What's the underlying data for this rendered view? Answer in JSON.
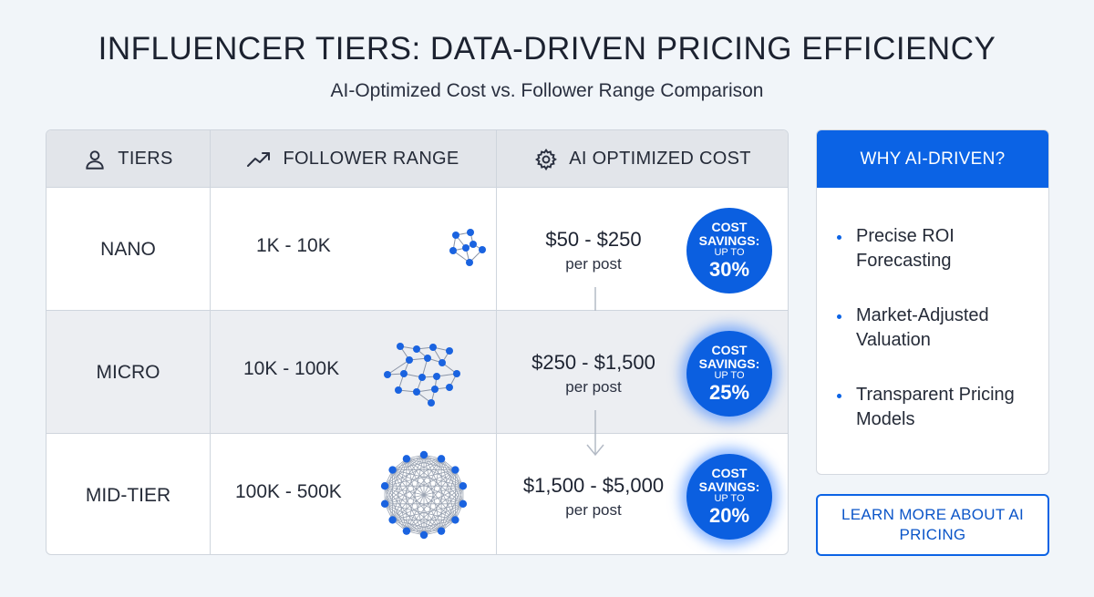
{
  "title": "INFLUENCER TIERS: DATA-DRIVEN PRICING EFFICIENCY",
  "subtitle": "AI-Optimized Cost vs. Follower Range Comparison",
  "table": {
    "headers": [
      {
        "label": "TIERS",
        "icon": "user-icon"
      },
      {
        "label": "FOLLOWER RANGE",
        "icon": "trending-up-icon"
      },
      {
        "label": "AI OPTIMIZED COST",
        "icon": "gear-icon"
      }
    ],
    "rows": [
      {
        "tier": "NANO",
        "range": "1K - 10K",
        "cost": "$50 - $250",
        "per": "per post",
        "badge": {
          "line1": "COST",
          "line2": "SAVINGS:",
          "line3": "UP TO",
          "pct": "30%"
        }
      },
      {
        "tier": "MICRO",
        "range": "10K - 100K",
        "cost": "$250 - $1,500",
        "per": "per post",
        "badge": {
          "line1": "COST",
          "line2": "SAVINGS:",
          "line3": "UP TO",
          "pct": "25%"
        }
      },
      {
        "tier": "MID-TIER",
        "range": "100K - 500K",
        "cost": "$1,500 - $5,000",
        "per": "per post",
        "badge": {
          "line1": "COST",
          "line2": "SAVINGS:",
          "line3": "UP TO",
          "pct": "20%"
        }
      }
    ]
  },
  "sidebar": {
    "title": "WHY AI-DRIVEN?",
    "items": [
      "Precise ROI Forecasting",
      "Market-Adjusted Valuation",
      "Transparent Pricing Models"
    ]
  },
  "cta": {
    "label": "LEARN MORE ABOUT AI PRICING"
  },
  "colors": {
    "accent": "#0b63e5",
    "header_bg": "#e2e5ea",
    "alt_row": "#eceef2",
    "background": "#f1f5f9"
  }
}
